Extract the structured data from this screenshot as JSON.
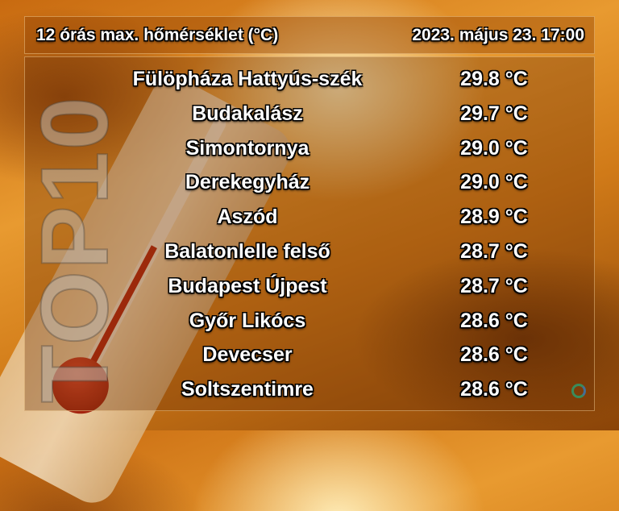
{
  "header": {
    "title": "12 órás max. hőmérséklet (°C)",
    "datetime": "2023. május 23. 17:00"
  },
  "watermark": "TOP10",
  "rows": [
    {
      "station": "Fülöpháza Hattyús-szék",
      "temp": "29.8 °C"
    },
    {
      "station": "Budakalász",
      "temp": "29.7 °C"
    },
    {
      "station": "Simontornya",
      "temp": "29.0 °C"
    },
    {
      "station": "Derekegyház",
      "temp": "29.0 °C"
    },
    {
      "station": "Aszód",
      "temp": "28.9 °C"
    },
    {
      "station": "Balatonlelle felső",
      "temp": "28.7 °C"
    },
    {
      "station": "Budapest Újpest",
      "temp": "28.7 °C"
    },
    {
      "station": "Győr Likócs",
      "temp": "28.6 °C"
    },
    {
      "station": "Devecser",
      "temp": "28.6 °C"
    },
    {
      "station": "Soltszentimre",
      "temp": "28.6 °C"
    }
  ],
  "icons": {
    "logo": "swirl-logo-icon",
    "background": "thermometer-illustration"
  }
}
